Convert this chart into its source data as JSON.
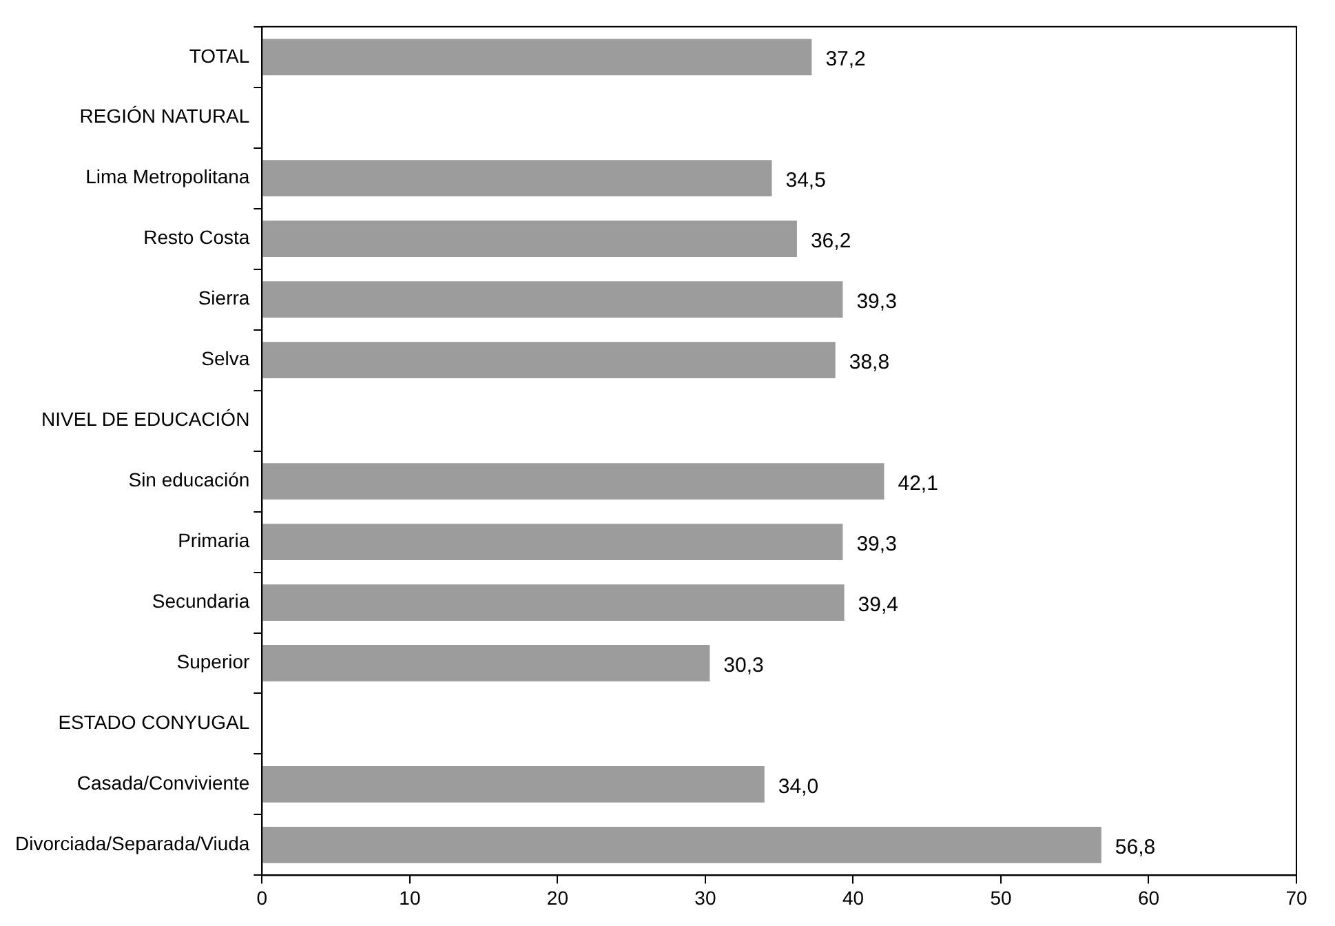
{
  "chart_data": {
    "type": "bar",
    "orientation": "horizontal",
    "categories": [
      "TOTAL",
      "REGIÓN NATURAL",
      "Lima Metropolitana",
      "Resto Costa",
      "Sierra",
      "Selva",
      "NIVEL DE EDUCACIÓN",
      "Sin educación",
      "Primaria",
      "Secundaria",
      "Superior",
      "ESTADO CONYUGAL",
      "Casada/Conviviente",
      "Divorciada/Separada/Viuda"
    ],
    "values": [
      37.2,
      null,
      34.5,
      36.2,
      39.3,
      38.8,
      null,
      42.1,
      39.3,
      39.4,
      30.3,
      null,
      34.0,
      56.8
    ],
    "value_labels": [
      "37,2",
      null,
      "34,5",
      "36,2",
      "39,3",
      "38,8",
      null,
      "42,1",
      "39,3",
      "39,4",
      "30,3",
      null,
      "34,0",
      "56,8"
    ],
    "color": "#9c9c9c",
    "xlim": [
      0,
      70
    ],
    "xticks": [
      0,
      10,
      20,
      30,
      40,
      50,
      60,
      70
    ],
    "grid": false,
    "legend": false
  }
}
